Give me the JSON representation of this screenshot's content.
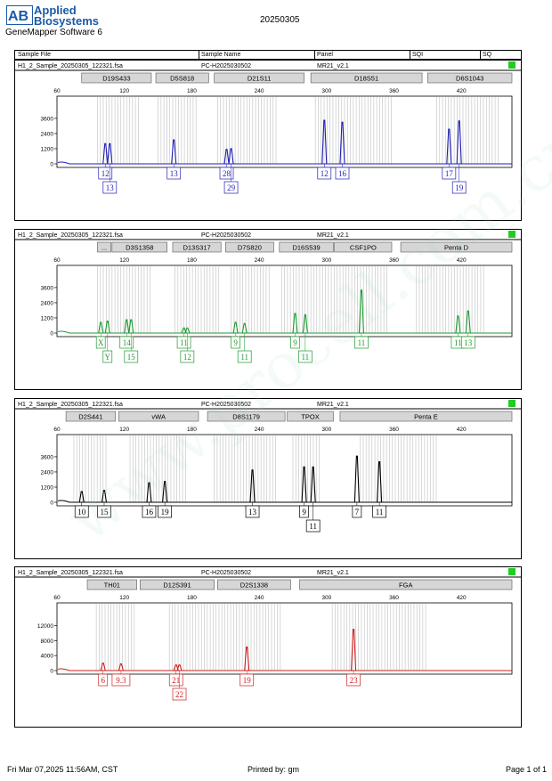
{
  "header": {
    "brand": [
      "Applied",
      "Biosystems"
    ],
    "brand_mark": "AB",
    "date_title": "20250305",
    "software": "GeneMapper Software 6"
  },
  "table_header": {
    "columns": [
      "Sample File",
      "Sample Name",
      "Panel",
      "SQI",
      "SQ"
    ]
  },
  "footer": {
    "printed_at": "Fri Mar 07,2025 11:56AM, CST",
    "printed_by": "Printed by: gm",
    "page": "Page 1 of 1"
  },
  "watermark": "www.procell.com.cn",
  "chart_data": [
    {
      "type": "line",
      "sample_file": "H1_2_Sample_20250305_122321.fsa",
      "sample_name": "PC-H2025030502",
      "panel": "MR21_v2.1",
      "status_color": "#22cc22",
      "color": "#1f1fb4",
      "x_ticks": [
        60,
        120,
        180,
        240,
        300,
        360,
        420
      ],
      "y_ticks": [
        0,
        1200,
        2400,
        3600
      ],
      "ylim": [
        0,
        4300
      ],
      "loci": [
        {
          "name": "D19S433",
          "start": 82,
          "end": 144
        },
        {
          "name": "D5S818",
          "start": 148,
          "end": 195
        },
        {
          "name": "D21S11",
          "start": 200,
          "end": 280
        },
        {
          "name": "D18S51",
          "start": 286,
          "end": 385
        },
        {
          "name": "D6S1043",
          "start": 390,
          "end": 465
        }
      ],
      "bin_regions": [
        [
          96,
          133
        ],
        [
          150,
          185
        ],
        [
          203,
          255
        ],
        [
          290,
          360
        ],
        [
          398,
          455
        ]
      ],
      "peaks": [
        {
          "x": 103,
          "h": 1600
        },
        {
          "x": 107,
          "h": 1600
        },
        {
          "x": 164,
          "h": 1900
        },
        {
          "x": 211,
          "h": 1150
        },
        {
          "x": 215,
          "h": 1200
        },
        {
          "x": 298,
          "h": 3450
        },
        {
          "x": 314,
          "h": 3300
        },
        {
          "x": 409,
          "h": 2750
        },
        {
          "x": 418,
          "h": 3400
        }
      ],
      "alleles_row1": [
        {
          "x": 103,
          "label": "12"
        },
        {
          "x": 164,
          "label": "13"
        },
        {
          "x": 211,
          "label": "28"
        },
        {
          "x": 298,
          "label": "12"
        },
        {
          "x": 314,
          "label": "16"
        },
        {
          "x": 409,
          "label": "17"
        }
      ],
      "alleles_row2": [
        {
          "x": 107,
          "label": "13"
        },
        {
          "x": 215,
          "label": "29"
        },
        {
          "x": 418,
          "label": "19"
        }
      ]
    },
    {
      "type": "line",
      "sample_file": "H1_2_Sample_20250305_122321.fsa",
      "sample_name": "PC-H2025030502",
      "panel": "MR21_v2.1",
      "status_color": "#22cc22",
      "color": "#1e9a30",
      "x_ticks": [
        60,
        120,
        180,
        240,
        300,
        360,
        420
      ],
      "y_ticks": [
        0,
        1200,
        2400,
        3600
      ],
      "ylim": [
        0,
        4300
      ],
      "loci": [
        {
          "name": "...",
          "start": 96,
          "end": 108
        },
        {
          "name": "D3S1358",
          "start": 109,
          "end": 158
        },
        {
          "name": "D13S317",
          "start": 163,
          "end": 206
        },
        {
          "name": "D7S820",
          "start": 210,
          "end": 253
        },
        {
          "name": "D16S539",
          "start": 258,
          "end": 306
        },
        {
          "name": "CSF1PO",
          "start": 307,
          "end": 358
        },
        {
          "name": "Penta D",
          "start": 366,
          "end": 465
        }
      ],
      "bin_regions": [
        [
          96,
          145
        ],
        [
          165,
          205
        ],
        [
          215,
          250
        ],
        [
          260,
          355
        ],
        [
          380,
          440
        ]
      ],
      "peaks": [
        {
          "x": 99,
          "h": 850
        },
        {
          "x": 105,
          "h": 950
        },
        {
          "x": 122,
          "h": 1050
        },
        {
          "x": 126,
          "h": 1050
        },
        {
          "x": 173,
          "h": 400
        },
        {
          "x": 176,
          "h": 400
        },
        {
          "x": 219,
          "h": 850
        },
        {
          "x": 227,
          "h": 750
        },
        {
          "x": 272,
          "h": 1550
        },
        {
          "x": 281,
          "h": 1450
        },
        {
          "x": 331,
          "h": 3400
        },
        {
          "x": 417,
          "h": 1350
        },
        {
          "x": 426,
          "h": 1750
        }
      ],
      "alleles_row1": [
        {
          "x": 99,
          "label": "X"
        },
        {
          "x": 122,
          "label": "14"
        },
        {
          "x": 173,
          "label": "11"
        },
        {
          "x": 219,
          "label": "9"
        },
        {
          "x": 272,
          "label": "9"
        },
        {
          "x": 331,
          "label": "11"
        },
        {
          "x": 417,
          "label": "11"
        },
        {
          "x": 426,
          "label": "13"
        }
      ],
      "alleles_row2": [
        {
          "x": 105,
          "label": "Y"
        },
        {
          "x": 126,
          "label": "15"
        },
        {
          "x": 176,
          "label": "12"
        },
        {
          "x": 227,
          "label": "11"
        },
        {
          "x": 281,
          "label": "11"
        }
      ]
    },
    {
      "type": "line",
      "sample_file": "H1_2_Sample_20250305_122321.fsa",
      "sample_name": "PC-H2025030502",
      "panel": "MR21_v2.1",
      "status_color": "#22cc22",
      "color": "#000000",
      "x_ticks": [
        60,
        120,
        180,
        240,
        300,
        360,
        420
      ],
      "y_ticks": [
        0,
        1200,
        2400,
        3600
      ],
      "ylim": [
        0,
        4300
      ],
      "loci": [
        {
          "name": "D2S441",
          "start": 68,
          "end": 112
        },
        {
          "name": "vWA",
          "start": 115,
          "end": 186
        },
        {
          "name": "D8S1179",
          "start": 194,
          "end": 263
        },
        {
          "name": "TPOX",
          "start": 265,
          "end": 306
        },
        {
          "name": "Penta E",
          "start": 312,
          "end": 465
        }
      ],
      "bin_regions": [
        [
          75,
          105
        ],
        [
          125,
          175
        ],
        [
          200,
          255
        ],
        [
          270,
          295
        ],
        [
          330,
          400
        ]
      ],
      "peaks": [
        {
          "x": 82,
          "h": 850
        },
        {
          "x": 102,
          "h": 950
        },
        {
          "x": 142,
          "h": 1550
        },
        {
          "x": 156,
          "h": 1650
        },
        {
          "x": 234,
          "h": 2550
        },
        {
          "x": 280,
          "h": 2800
        },
        {
          "x": 288,
          "h": 2800
        },
        {
          "x": 327,
          "h": 3650
        },
        {
          "x": 347,
          "h": 3200
        }
      ],
      "alleles_row1": [
        {
          "x": 82,
          "label": "10"
        },
        {
          "x": 102,
          "label": "15"
        },
        {
          "x": 142,
          "label": "16"
        },
        {
          "x": 156,
          "label": "19"
        },
        {
          "x": 234,
          "label": "13"
        },
        {
          "x": 280,
          "label": "9"
        },
        {
          "x": 327,
          "label": "7"
        },
        {
          "x": 347,
          "label": "11"
        }
      ],
      "alleles_row2": [
        {
          "x": 288,
          "label": "11"
        }
      ]
    },
    {
      "type": "line",
      "sample_file": "H1_2_Sample_20250305_122321.fsa",
      "sample_name": "PC-H2025030502",
      "panel": "MR21_v2.1",
      "status_color": "#22cc22",
      "color": "#cc1f1f",
      "x_ticks": [
        60,
        120,
        180,
        240,
        300,
        360,
        420
      ],
      "y_ticks": [
        0,
        4000,
        8000,
        12000
      ],
      "ylim": [
        0,
        14500
      ],
      "loci": [
        {
          "name": "TH01",
          "start": 87,
          "end": 131
        },
        {
          "name": "D12S391",
          "start": 134,
          "end": 200
        },
        {
          "name": "D2S1338",
          "start": 203,
          "end": 268
        },
        {
          "name": "FGA",
          "start": 276,
          "end": 465
        }
      ],
      "bin_regions": [
        [
          95,
          130
        ],
        [
          160,
          260
        ],
        [
          305,
          390
        ]
      ],
      "peaks": [
        {
          "x": 101,
          "h": 2000
        },
        {
          "x": 117,
          "h": 1800
        },
        {
          "x": 166,
          "h": 1500
        },
        {
          "x": 169,
          "h": 1500
        },
        {
          "x": 229,
          "h": 6300
        },
        {
          "x": 324,
          "h": 11000
        }
      ],
      "alleles_row1": [
        {
          "x": 101,
          "label": "6"
        },
        {
          "x": 117,
          "label": "9.3"
        },
        {
          "x": 166,
          "label": "21"
        },
        {
          "x": 229,
          "label": "19"
        },
        {
          "x": 324,
          "label": "23"
        }
      ],
      "alleles_row2": [
        {
          "x": 169,
          "label": "22"
        }
      ]
    }
  ]
}
